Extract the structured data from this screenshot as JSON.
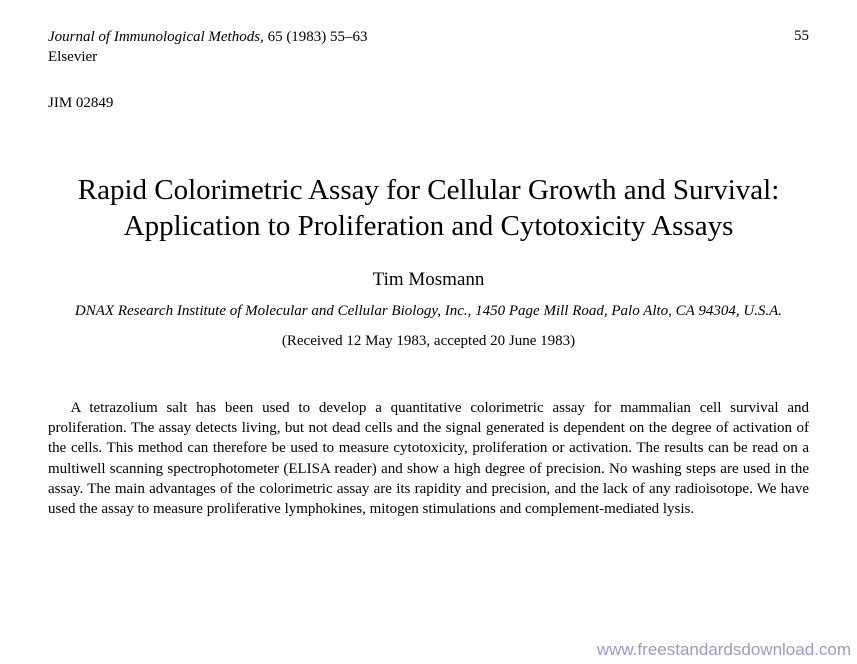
{
  "header": {
    "journal_name": "Journal of Immunological Methods,",
    "citation": " 65 (1983) 55–63",
    "publisher": "Elsevier",
    "page_number": "55"
  },
  "code": "JIM 02849",
  "title": "Rapid Colorimetric Assay for Cellular Growth and Survival: Application to Proliferation and Cytotoxicity Assays",
  "author": "Tim Mosmann",
  "affiliation": "DNAX Research Institute of Molecular and Cellular Biology, Inc., 1450 Page Mill Road, Palo Alto, CA 94304, U.S.A.",
  "received": "(Received 12 May 1983, accepted 20 June 1983)",
  "abstract": "A tetrazolium salt has been used to develop a quantitative colorimetric assay for mammalian cell survival and proliferation. The assay detects living, but not dead cells and the signal generated is dependent on the degree of activation of the cells. This method can therefore be used to measure cytotoxicity, proliferation or activation. The results can be read on a multiwell scanning spectrophotometer (ELISA reader) and show a high degree of precision. No washing steps are used in the assay. The main advantages of the colorimetric assay are its rapidity and precision, and the lack of any radioisotope. We have used the assay to measure proliferative lymphokines, mitogen stimulations and complement-mediated lysis.",
  "watermark": "www.freestandardsdownload.com"
}
